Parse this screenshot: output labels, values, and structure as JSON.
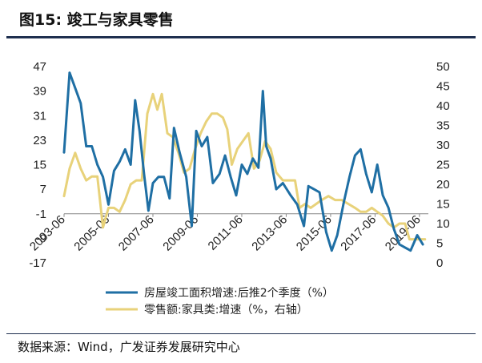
{
  "figure": {
    "title": "图15: 竣工与家具零售",
    "source": "数据来源：Wind，广发证券发展研究中心"
  },
  "colors": {
    "series1": "#1f6fa4",
    "series2": "#e8d27a",
    "rule": "#1e2f4f"
  },
  "chart_data": {
    "type": "line",
    "title": "",
    "xlabel": "",
    "ylabel": "",
    "x_ticks": [
      "2003-06",
      "2005-06",
      "2007-06",
      "2009-06",
      "2011-06",
      "2013-06",
      "2015-06",
      "2017-06",
      "2019-06"
    ],
    "x_tick_values": [
      2003.5,
      2005.5,
      2007.5,
      2009.5,
      2011.5,
      2013.5,
      2015.5,
      2017.5,
      2019.5
    ],
    "xlim": [
      2003.5,
      2019.9
    ],
    "y_left": {
      "ticks": [
        "47",
        "39",
        "31",
        "23",
        "15",
        "7",
        "-1",
        "-9",
        "-17"
      ],
      "ylim": [
        -17,
        47
      ]
    },
    "y_right": {
      "ticks": [
        "50",
        "45",
        "40",
        "35",
        "30",
        "25",
        "20",
        "15",
        "10",
        "5",
        "0"
      ],
      "ylim": [
        0,
        50
      ]
    },
    "legend_position": "bottom",
    "series": [
      {
        "name": "房屋竣工面积增速:后推2个季度（%）",
        "axis": "left",
        "points": [
          [
            2003.5,
            19
          ],
          [
            2003.75,
            45
          ],
          [
            2004.0,
            40
          ],
          [
            2004.25,
            35
          ],
          [
            2004.5,
            21
          ],
          [
            2004.75,
            21
          ],
          [
            2005.0,
            15
          ],
          [
            2005.25,
            11
          ],
          [
            2005.5,
            2
          ],
          [
            2005.75,
            13
          ],
          [
            2006.0,
            16
          ],
          [
            2006.25,
            20
          ],
          [
            2006.5,
            15
          ],
          [
            2006.7,
            36
          ],
          [
            2006.9,
            26
          ],
          [
            2007.1,
            12
          ],
          [
            2007.3,
            0
          ],
          [
            2007.5,
            9
          ],
          [
            2007.75,
            11
          ],
          [
            2008.0,
            11
          ],
          [
            2008.25,
            4
          ],
          [
            2008.45,
            27
          ],
          [
            2008.7,
            19
          ],
          [
            2009.0,
            11
          ],
          [
            2009.25,
            -5
          ],
          [
            2009.45,
            26
          ],
          [
            2009.7,
            21
          ],
          [
            2009.95,
            24
          ],
          [
            2010.2,
            9
          ],
          [
            2010.5,
            12
          ],
          [
            2010.75,
            18
          ],
          [
            2011.0,
            11
          ],
          [
            2011.25,
            5
          ],
          [
            2011.5,
            15
          ],
          [
            2011.75,
            12
          ],
          [
            2012.0,
            17
          ],
          [
            2012.25,
            14
          ],
          [
            2012.45,
            39
          ],
          [
            2012.6,
            21
          ],
          [
            2012.8,
            17
          ],
          [
            2013.05,
            7
          ],
          [
            2013.35,
            9
          ],
          [
            2013.7,
            5
          ],
          [
            2014.0,
            2
          ],
          [
            2014.3,
            -5
          ],
          [
            2014.5,
            8
          ],
          [
            2014.75,
            7
          ],
          [
            2015.0,
            6
          ],
          [
            2015.3,
            -7
          ],
          [
            2015.55,
            -13
          ],
          [
            2015.8,
            -8
          ],
          [
            2016.1,
            3
          ],
          [
            2016.35,
            11
          ],
          [
            2016.6,
            18
          ],
          [
            2016.85,
            20
          ],
          [
            2017.1,
            12
          ],
          [
            2017.35,
            6
          ],
          [
            2017.6,
            15
          ],
          [
            2017.85,
            5
          ],
          [
            2018.1,
            1
          ],
          [
            2018.35,
            -6
          ],
          [
            2018.6,
            -11
          ],
          [
            2018.85,
            -12
          ],
          [
            2019.1,
            -13
          ],
          [
            2019.4,
            -8
          ],
          [
            2019.65,
            -11
          ]
        ]
      },
      {
        "name": "零售额:家具类:增速（%，右轴）",
        "axis": "right",
        "points": [
          [
            2003.5,
            17
          ],
          [
            2003.75,
            24
          ],
          [
            2004.0,
            28
          ],
          [
            2004.25,
            24
          ],
          [
            2004.5,
            21
          ],
          [
            2004.75,
            22
          ],
          [
            2005.0,
            22
          ],
          [
            2005.25,
            9
          ],
          [
            2005.5,
            14
          ],
          [
            2005.75,
            14
          ],
          [
            2006.0,
            13
          ],
          [
            2006.25,
            16
          ],
          [
            2006.5,
            20
          ],
          [
            2006.75,
            21
          ],
          [
            2007.0,
            21
          ],
          [
            2007.25,
            38
          ],
          [
            2007.5,
            43
          ],
          [
            2007.7,
            39
          ],
          [
            2007.9,
            43
          ],
          [
            2008.15,
            33
          ],
          [
            2008.4,
            32
          ],
          [
            2008.65,
            28
          ],
          [
            2008.9,
            23
          ],
          [
            2009.15,
            24
          ],
          [
            2009.4,
            29
          ],
          [
            2009.65,
            33
          ],
          [
            2009.9,
            36
          ],
          [
            2010.15,
            38
          ],
          [
            2010.4,
            38
          ],
          [
            2010.65,
            37
          ],
          [
            2010.85,
            34
          ],
          [
            2011.05,
            25
          ],
          [
            2011.3,
            29
          ],
          [
            2011.55,
            31
          ],
          [
            2011.8,
            33
          ],
          [
            2012.05,
            24
          ],
          [
            2012.3,
            26
          ],
          [
            2012.55,
            31
          ],
          [
            2012.8,
            29
          ],
          [
            2013.05,
            23
          ],
          [
            2013.35,
            21
          ],
          [
            2013.6,
            21
          ],
          [
            2013.9,
            21
          ],
          [
            2014.1,
            14
          ],
          [
            2014.35,
            15
          ],
          [
            2014.6,
            14
          ],
          [
            2014.85,
            15
          ],
          [
            2015.1,
            16
          ],
          [
            2015.4,
            17
          ],
          [
            2015.7,
            16
          ],
          [
            2016.0,
            16
          ],
          [
            2016.3,
            15
          ],
          [
            2016.6,
            14
          ],
          [
            2016.85,
            13
          ],
          [
            2017.1,
            13
          ],
          [
            2017.35,
            14
          ],
          [
            2017.6,
            13
          ],
          [
            2017.85,
            12
          ],
          [
            2018.1,
            10
          ],
          [
            2018.35,
            9
          ],
          [
            2018.6,
            10
          ],
          [
            2018.85,
            10
          ],
          [
            2019.05,
            6
          ],
          [
            2019.3,
            6
          ],
          [
            2019.55,
            6
          ],
          [
            2019.75,
            6
          ]
        ]
      }
    ]
  }
}
